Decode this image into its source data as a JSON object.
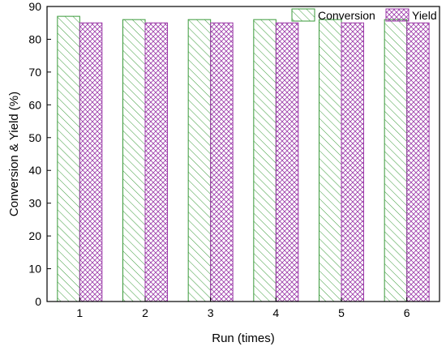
{
  "chart_data": {
    "type": "bar",
    "title": "",
    "xlabel": "Run (times)",
    "ylabel": "Conversion & Yield (%)",
    "categories": [
      "1",
      "2",
      "3",
      "4",
      "5",
      "6"
    ],
    "ylim": [
      0,
      90
    ],
    "yticks": [
      "0",
      "10",
      "20",
      "30",
      "40",
      "50",
      "60",
      "70",
      "80",
      "90"
    ],
    "grid": false,
    "legend_position": "top-right",
    "series": [
      {
        "name": "Conversion",
        "values": [
          87,
          86,
          86,
          86,
          86,
          86
        ],
        "color": "#3a9a3a",
        "pattern": "diagonal-hatch"
      },
      {
        "name": "Yield",
        "values": [
          85,
          85,
          85,
          85,
          85,
          85
        ],
        "color": "#9b3aa8",
        "pattern": "cross-hatch"
      }
    ]
  }
}
